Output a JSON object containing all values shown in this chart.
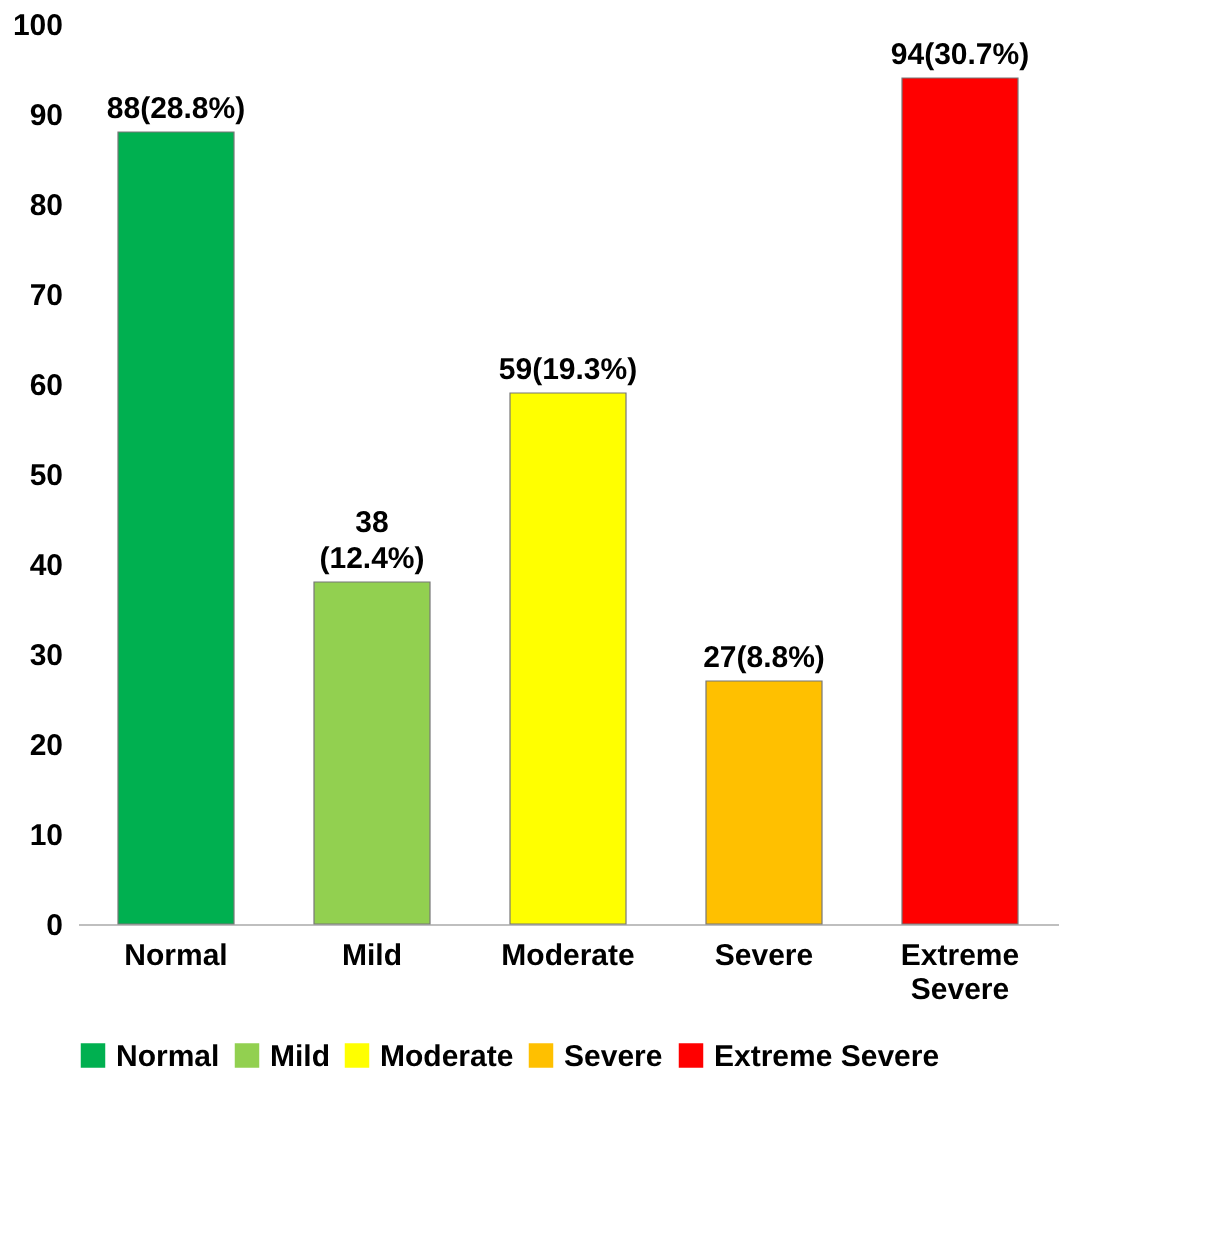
{
  "chart_data": {
    "type": "bar",
    "stacked": true,
    "categories": [
      "Normal",
      "Mild",
      "Moderate",
      "Severe",
      "Extreme Severe"
    ],
    "series": [
      {
        "name": "Normal",
        "color": "#00b050",
        "values": [
          88,
          null,
          null,
          null,
          null
        ],
        "value_labels": [
          "88(28.8%)",
          null,
          null,
          null,
          null
        ]
      },
      {
        "name": "Mild",
        "color": "#92d050",
        "values": [
          null,
          38,
          null,
          null,
          null
        ],
        "value_labels": [
          null,
          "38\n(12.4%)",
          null,
          null,
          null
        ]
      },
      {
        "name": "Moderate",
        "color": "#ffff00",
        "values": [
          null,
          null,
          59,
          null,
          null
        ],
        "value_labels": [
          null,
          null,
          "59(19.3%)",
          null,
          null
        ]
      },
      {
        "name": "Severe",
        "color": "#ffc000",
        "values": [
          null,
          null,
          null,
          27,
          null
        ],
        "value_labels": [
          null,
          null,
          null,
          "27(8.8%)",
          null
        ]
      },
      {
        "name": "Extreme Severe",
        "color": "#ff0000",
        "values": [
          null,
          null,
          null,
          null,
          94
        ],
        "value_labels": [
          null,
          null,
          null,
          null,
          "94(30.7%)"
        ]
      }
    ],
    "ylim": [
      0,
      100
    ],
    "yticks": [
      0,
      10,
      20,
      30,
      40,
      50,
      60,
      70,
      80,
      90,
      100
    ],
    "grid": false,
    "legend": "bottom"
  }
}
